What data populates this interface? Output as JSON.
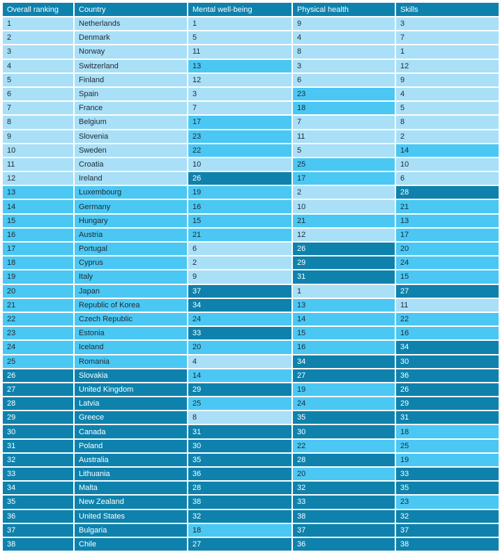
{
  "header": {
    "overall": "Overall ranking",
    "country": "Country",
    "mental": "Mental well-being",
    "physical": "Physical health",
    "skills": "Skills"
  },
  "tier_colors": {
    "top": "#a9dff7",
    "middle": "#4bc7f3",
    "bottom": "#0e82ad",
    "header": "#0e82ad"
  },
  "rows": [
    {
      "rank": 1,
      "country": "Netherlands",
      "mental": 1,
      "physical": 9,
      "skills": 3
    },
    {
      "rank": 2,
      "country": "Denmark",
      "mental": 5,
      "physical": 4,
      "skills": 7
    },
    {
      "rank": 3,
      "country": "Norway",
      "mental": 11,
      "physical": 8,
      "skills": 1
    },
    {
      "rank": 4,
      "country": "Switzerland",
      "mental": 13,
      "physical": 3,
      "skills": 12
    },
    {
      "rank": 5,
      "country": "Finland",
      "mental": 12,
      "physical": 6,
      "skills": 9
    },
    {
      "rank": 6,
      "country": "Spain",
      "mental": 3,
      "physical": 23,
      "skills": 4
    },
    {
      "rank": 7,
      "country": "France",
      "mental": 7,
      "physical": 18,
      "skills": 5
    },
    {
      "rank": 8,
      "country": "Belgium",
      "mental": 17,
      "physical": 7,
      "skills": 8
    },
    {
      "rank": 9,
      "country": "Slovenia",
      "mental": 23,
      "physical": 11,
      "skills": 2
    },
    {
      "rank": 10,
      "country": "Sweden",
      "mental": 22,
      "physical": 5,
      "skills": 14
    },
    {
      "rank": 11,
      "country": "Croatia",
      "mental": 10,
      "physical": 25,
      "skills": 10
    },
    {
      "rank": 12,
      "country": "Ireland",
      "mental": 26,
      "physical": 17,
      "skills": 6
    },
    {
      "rank": 13,
      "country": "Luxembourg",
      "mental": 19,
      "physical": 2,
      "skills": 28
    },
    {
      "rank": 14,
      "country": "Germany",
      "mental": 16,
      "physical": 10,
      "skills": 21
    },
    {
      "rank": 15,
      "country": "Hungary",
      "mental": 15,
      "physical": 21,
      "skills": 13
    },
    {
      "rank": 16,
      "country": "Austria",
      "mental": 21,
      "physical": 12,
      "skills": 17
    },
    {
      "rank": 17,
      "country": "Portugal",
      "mental": 6,
      "physical": 26,
      "skills": 20
    },
    {
      "rank": 18,
      "country": "Cyprus",
      "mental": 2,
      "physical": 29,
      "skills": 24
    },
    {
      "rank": 19,
      "country": "Italy",
      "mental": 9,
      "physical": 31,
      "skills": 15
    },
    {
      "rank": 20,
      "country": "Japan",
      "mental": 37,
      "physical": 1,
      "skills": 27
    },
    {
      "rank": 21,
      "country": "Republic of Korea",
      "mental": 34,
      "physical": 13,
      "skills": 11
    },
    {
      "rank": 22,
      "country": "Czech Republic",
      "mental": 24,
      "physical": 14,
      "skills": 22
    },
    {
      "rank": 23,
      "country": "Estonia",
      "mental": 33,
      "physical": 15,
      "skills": 16
    },
    {
      "rank": 24,
      "country": "Iceland",
      "mental": 20,
      "physical": 16,
      "skills": 34
    },
    {
      "rank": 25,
      "country": "Romania",
      "mental": 4,
      "physical": 34,
      "skills": 30
    },
    {
      "rank": 26,
      "country": "Slovakia",
      "mental": 14,
      "physical": 27,
      "skills": 36
    },
    {
      "rank": 27,
      "country": "United Kingdom",
      "mental": 29,
      "physical": 19,
      "skills": 26
    },
    {
      "rank": 28,
      "country": "Latvia",
      "mental": 25,
      "physical": 24,
      "skills": 29
    },
    {
      "rank": 29,
      "country": "Greece",
      "mental": 8,
      "physical": 35,
      "skills": 31
    },
    {
      "rank": 30,
      "country": "Canada",
      "mental": 31,
      "physical": 30,
      "skills": 18
    },
    {
      "rank": 31,
      "country": "Poland",
      "mental": 30,
      "physical": 22,
      "skills": 25
    },
    {
      "rank": 32,
      "country": "Australia",
      "mental": 35,
      "physical": 28,
      "skills": 19
    },
    {
      "rank": 33,
      "country": "Lithuania",
      "mental": 36,
      "physical": 20,
      "skills": 33
    },
    {
      "rank": 34,
      "country": "Malta",
      "mental": 28,
      "physical": 32,
      "skills": 35
    },
    {
      "rank": 35,
      "country": "New Zealand",
      "mental": 38,
      "physical": 33,
      "skills": 23
    },
    {
      "rank": 36,
      "country": "United States",
      "mental": 32,
      "physical": 38,
      "skills": 32
    },
    {
      "rank": 37,
      "country": "Bulgaria",
      "mental": 18,
      "physical": 37,
      "skills": 37
    },
    {
      "rank": 38,
      "country": "Chile",
      "mental": 27,
      "physical": 36,
      "skills": 38
    }
  ]
}
